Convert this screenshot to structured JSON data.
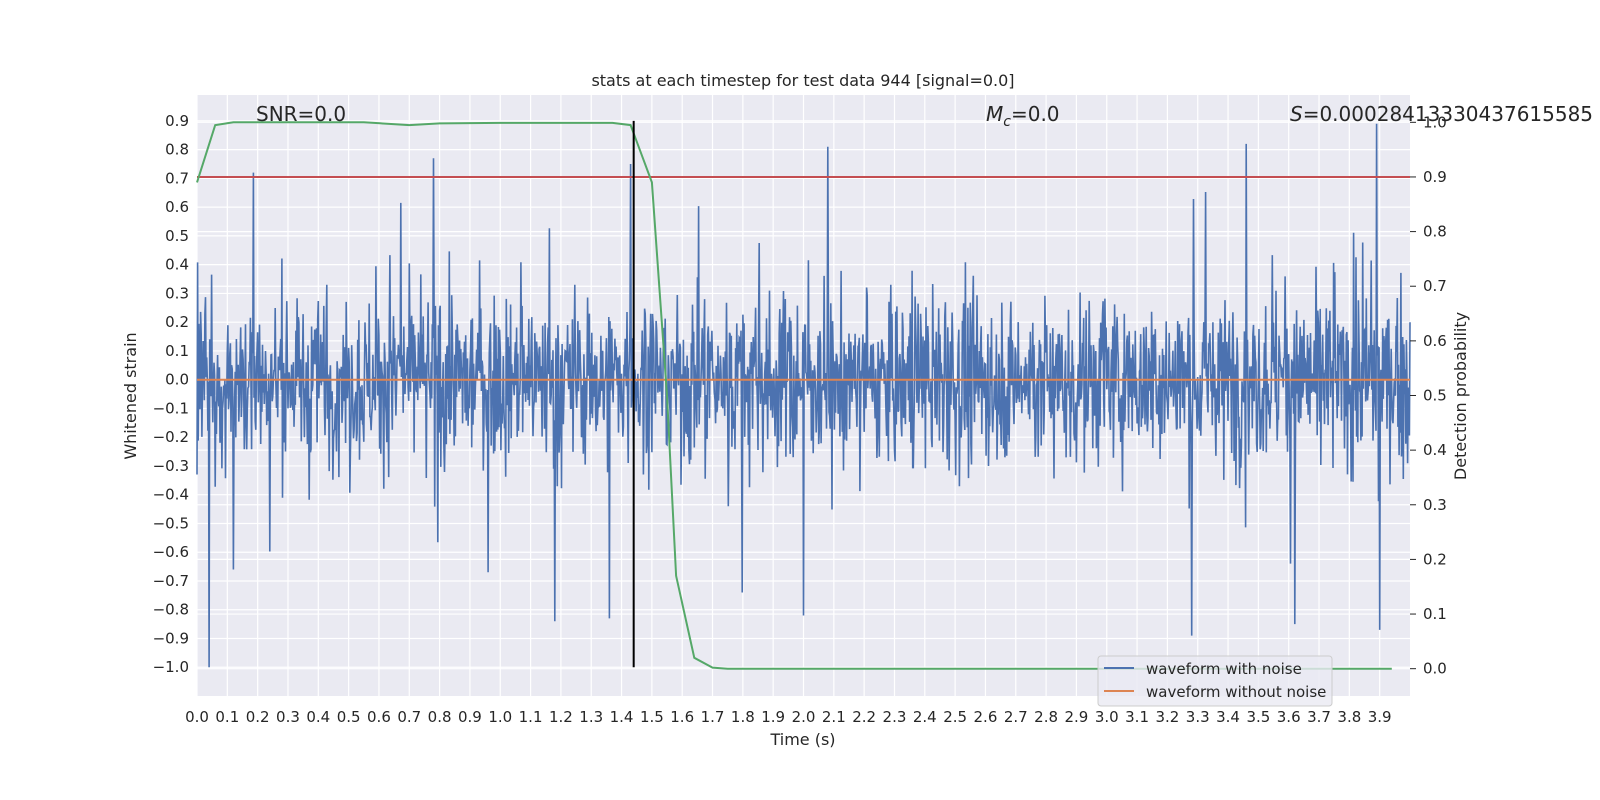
{
  "chart_data": {
    "type": "line",
    "title": "stats at each timestep for test data 944 [signal=0.0]",
    "xlabel": "Time (s)",
    "ylabel_left": "Whitened strain",
    "ylabel_right": "Detection probability",
    "xlim": [
      0.0,
      4.0
    ],
    "ylim_left": [
      -1.1,
      0.99
    ],
    "ylim_right": [
      -0.05,
      1.05
    ],
    "xticks": [
      "0.0",
      "0.1",
      "0.2",
      "0.3",
      "0.4",
      "0.5",
      "0.6",
      "0.7",
      "0.8",
      "0.9",
      "1.0",
      "1.1",
      "1.2",
      "1.3",
      "1.4",
      "1.5",
      "1.6",
      "1.7",
      "1.8",
      "1.9",
      "2.0",
      "2.1",
      "2.2",
      "2.3",
      "2.4",
      "2.5",
      "2.6",
      "2.7",
      "2.8",
      "2.9",
      "3.0",
      "3.1",
      "3.2",
      "3.3",
      "3.4",
      "3.5",
      "3.6",
      "3.7",
      "3.8",
      "3.9"
    ],
    "yticks_left": [
      "0.9",
      "0.8",
      "0.7",
      "0.6",
      "0.5",
      "0.4",
      "0.3",
      "0.2",
      "0.1",
      "0.0",
      "−0.1",
      "−0.2",
      "−0.3",
      "−0.4",
      "−0.5",
      "−0.6",
      "−0.7",
      "−0.8",
      "−0.9",
      "−1.0"
    ],
    "yticks_right": [
      "1.0",
      "0.9",
      "0.8",
      "0.7",
      "0.6",
      "0.5",
      "0.4",
      "0.3",
      "0.2",
      "0.1",
      "0.0"
    ],
    "annotations": {
      "snr": "SNR=0.0",
      "mc_symbol": "M",
      "mc_sub": "c",
      "mc_value": "=0.0",
      "s_symbol": "S",
      "s_value": "=0.00028413330437615585"
    },
    "series": [
      {
        "name": "waveform with noise",
        "axis": "left",
        "color": "#4c72b0",
        "description": "dense whitened noise, roughly within -0.6..0.6 with spikes",
        "spikes": [
          {
            "x": 0.04,
            "y": -1.0
          },
          {
            "x": 0.12,
            "y": -0.66
          },
          {
            "x": 0.78,
            "y": 0.77
          },
          {
            "x": 0.96,
            "y": -0.67
          },
          {
            "x": 1.18,
            "y": -0.84
          },
          {
            "x": 1.36,
            "y": -0.83
          },
          {
            "x": 1.43,
            "y": 0.75
          },
          {
            "x": 2.0,
            "y": -0.82
          },
          {
            "x": 2.08,
            "y": 0.81
          },
          {
            "x": 3.28,
            "y": -0.89
          },
          {
            "x": 3.46,
            "y": 0.82
          },
          {
            "x": 3.62,
            "y": -0.85
          },
          {
            "x": 3.89,
            "y": 0.89
          },
          {
            "x": 3.9,
            "y": -0.87
          }
        ]
      },
      {
        "name": "waveform without noise",
        "axis": "left",
        "color": "#dd8452",
        "x": [
          0.0,
          4.0
        ],
        "y": [
          0.0,
          0.0
        ]
      },
      {
        "name": "detection probability",
        "axis": "right",
        "color": "#55a868",
        "x": [
          0.0,
          0.06,
          0.12,
          0.2,
          0.4,
          0.55,
          0.7,
          0.8,
          1.0,
          1.2,
          1.37,
          1.43,
          1.5,
          1.55,
          1.58,
          1.64,
          1.7,
          1.75,
          1.9,
          2.5,
          3.0,
          3.5,
          3.94
        ],
        "y": [
          0.89,
          0.995,
          1.0,
          1.0,
          1.0,
          1.0,
          0.995,
          0.998,
          0.999,
          0.999,
          0.999,
          0.995,
          0.89,
          0.5,
          0.17,
          0.02,
          0.002,
          0.0,
          0.0,
          0.0,
          0.0,
          0.0,
          0.0
        ]
      },
      {
        "name": "threshold",
        "axis": "right",
        "color": "#c44e52",
        "x": [
          0.0,
          4.0
        ],
        "y": [
          0.9,
          0.9
        ]
      }
    ],
    "vline": {
      "x": 1.44,
      "color": "#000000",
      "y_from": -1.0,
      "y_to": 0.9
    },
    "legend": {
      "location": "lower-right",
      "entries": [
        {
          "label": "waveform with noise",
          "color": "#4c72b0"
        },
        {
          "label": "waveform without noise",
          "color": "#dd8452"
        }
      ]
    },
    "grid": true,
    "style": {
      "plot_bg": "#eaeaf2",
      "grid_color": "#ffffff"
    }
  }
}
